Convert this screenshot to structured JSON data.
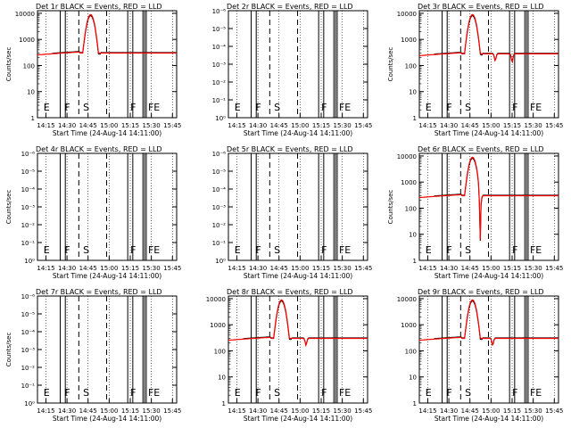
{
  "colors": {
    "events": "#000000",
    "lld": "#ff0000",
    "axis": "#000000"
  },
  "chart_data": [
    {
      "type": "line",
      "panel": "det1",
      "title": "Det 1r BLACK = Events, RED = LLD",
      "has_data": true,
      "ylabel": "Counts/sec",
      "xlabel": "Start Time (24-Aug-14 14:11:00)",
      "ylim": [
        1,
        10000
      ],
      "yscale": "log",
      "yticks": [
        "1",
        "10",
        "100",
        "1000",
        "10000"
      ],
      "xticks": [
        "14:15",
        "14:30",
        "14:45",
        "15:00",
        "15:15",
        "15:30",
        "15:45"
      ],
      "markers": [
        "E",
        "F",
        "S",
        "F",
        "FE"
      ],
      "peak": 9000,
      "base": 300,
      "dips": []
    },
    {
      "type": "line",
      "panel": "det2",
      "title": "Det 2r BLACK = Events, RED = LLD",
      "has_data": false,
      "ylabel": "",
      "xlabel": "Start Time (24-Aug-14 14:11:00)",
      "yscale": "log",
      "yticks": [
        "10⁰",
        "10⁻¹",
        "10⁻²",
        "10⁻³",
        "10⁻⁴",
        "10⁻⁵",
        "10⁻⁶"
      ],
      "xticks": [
        "14:15",
        "14:30",
        "14:45",
        "15:00",
        "15:15",
        "15:30",
        "15:45"
      ],
      "markers": [
        "E",
        "F",
        "S",
        "F",
        "FE"
      ]
    },
    {
      "type": "line",
      "panel": "det3",
      "title": "Det 3r BLACK = Events, RED = LLD",
      "has_data": true,
      "ylabel": "Counts/sec",
      "xlabel": "Start Time (24-Aug-14 14:11:00)",
      "ylim": [
        1,
        10000
      ],
      "yscale": "log",
      "yticks": [
        "1",
        "10",
        "100",
        "1000",
        "10000"
      ],
      "xticks": [
        "14:15",
        "14:30",
        "14:45",
        "15:00",
        "15:15",
        "15:30",
        "15:45"
      ],
      "markers": [
        "E",
        "F",
        "S",
        "F",
        "FE"
      ],
      "peak": 9000,
      "base": 280,
      "dips": [
        [
          15.05,
          150
        ],
        [
          15.25,
          130
        ]
      ]
    },
    {
      "type": "line",
      "panel": "det4",
      "title": "Det 4r BLACK = Events, RED = LLD",
      "has_data": false,
      "ylabel": "Counts/sec",
      "xlabel": "Start Time (24-Aug-14 14:11:00)",
      "yscale": "log",
      "yticks": [
        "10⁰",
        "10⁻¹",
        "10⁻²",
        "10⁻³",
        "10⁻⁴",
        "10⁻⁵",
        "10⁻⁶"
      ],
      "xticks": [
        "14:15",
        "14:30",
        "14:45",
        "15:00",
        "15:15",
        "15:30",
        "15:45"
      ],
      "markers": [
        "E",
        "F",
        "S",
        "F",
        "FE"
      ]
    },
    {
      "type": "line",
      "panel": "det5",
      "title": "Det 5r BLACK = Events, RED = LLD",
      "has_data": false,
      "ylabel": "",
      "xlabel": "Start Time (24-Aug-14 14:11:00)",
      "yscale": "log",
      "yticks": [
        "10⁰",
        "10⁻¹",
        "10⁻²",
        "10⁻³",
        "10⁻⁴",
        "10⁻⁵",
        "10⁻⁶"
      ],
      "xticks": [
        "14:15",
        "14:30",
        "14:45",
        "15:00",
        "15:15",
        "15:30",
        "15:45"
      ],
      "markers": [
        "E",
        "F",
        "S",
        "F",
        "FE"
      ]
    },
    {
      "type": "line",
      "panel": "det6",
      "title": "Det 6r BLACK = Events, RED = LLD",
      "has_data": true,
      "ylabel": "Counts/sec",
      "xlabel": "Start Time (24-Aug-14 14:11:00)",
      "ylim": [
        1,
        10000
      ],
      "yscale": "log",
      "yticks": [
        "1",
        "10",
        "100",
        "1000",
        "10000"
      ],
      "xticks": [
        "14:15",
        "14:30",
        "14:45",
        "15:00",
        "15:15",
        "15:30",
        "15:45"
      ],
      "markers": [
        "E",
        "F",
        "S",
        "F",
        "FE"
      ],
      "peak": 9000,
      "base": 300,
      "dips": [
        [
          14.87,
          1.5
        ]
      ]
    },
    {
      "type": "line",
      "panel": "det7",
      "title": "Det 7r BLACK = Events, RED = LLD",
      "has_data": false,
      "ylabel": "Counts/sec",
      "xlabel": "Start Time (24-Aug-14 14:11:00)",
      "yscale": "log",
      "yticks": [
        "10⁰",
        "10⁻¹",
        "10⁻²",
        "10⁻³",
        "10⁻⁴",
        "10⁻⁵",
        "10⁻⁶"
      ],
      "xticks": [
        "14:15",
        "14:30",
        "14:45",
        "15:00",
        "15:15",
        "15:30",
        "15:45"
      ],
      "markers": [
        "E",
        "F",
        "S",
        "F",
        "FE"
      ]
    },
    {
      "type": "line",
      "panel": "det8",
      "title": "Det 8r BLACK = Events, RED = LLD",
      "has_data": true,
      "ylabel": "",
      "xlabel": "Start Time (24-Aug-14 14:11:00)",
      "ylim": [
        1,
        10000
      ],
      "yscale": "log",
      "yticks": [
        "1",
        "10",
        "100",
        "1000",
        "10000"
      ],
      "xticks": [
        "14:15",
        "14:30",
        "14:45",
        "15:00",
        "15:15",
        "15:30",
        "15:45"
      ],
      "markers": [
        "E",
        "F",
        "S",
        "F",
        "FE"
      ],
      "peak": 9000,
      "base": 300,
      "dips": [
        [
          15.07,
          160
        ]
      ]
    },
    {
      "type": "line",
      "panel": "det9",
      "title": "Det 9r BLACK = Events, RED = LLD",
      "has_data": true,
      "ylabel": "",
      "xlabel": "Start Time (24-Aug-14 14:11:00)",
      "ylim": [
        1,
        10000
      ],
      "yscale": "log",
      "yticks": [
        "1",
        "10",
        "100",
        "1000",
        "10000"
      ],
      "xticks": [
        "14:15",
        "14:30",
        "14:45",
        "15:00",
        "15:15",
        "15:30",
        "15:45"
      ],
      "markers": [
        "E",
        "F",
        "S",
        "F",
        "FE"
      ],
      "peak": 9000,
      "base": 300,
      "dips": [
        [
          15.02,
          160
        ]
      ]
    }
  ]
}
